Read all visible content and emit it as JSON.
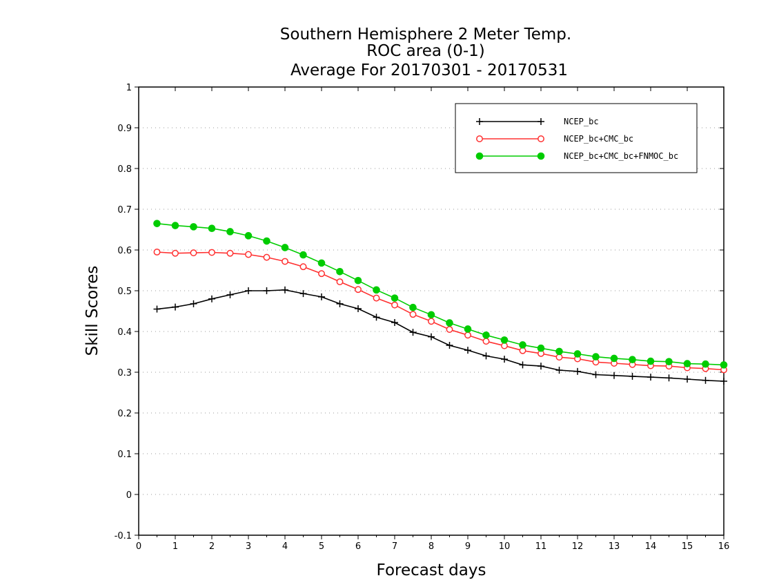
{
  "chart_data": {
    "type": "line",
    "title_lines": [
      "Southern Hemisphere 2 Meter Temp.",
      "ROC area (0-1)",
      "Average For 20170301 - 20170531"
    ],
    "xlabel": "Forecast days",
    "ylabel": "Skill Scores",
    "xlim": [
      0,
      16
    ],
    "ylim": [
      -0.1,
      1
    ],
    "x_ticks": [
      0,
      1,
      2,
      3,
      4,
      5,
      6,
      7,
      8,
      9,
      10,
      11,
      12,
      13,
      14,
      15,
      16
    ],
    "y_ticks": [
      -0.1,
      0,
      0.1,
      0.2,
      0.3,
      0.4,
      0.5,
      0.6,
      0.7,
      0.8,
      0.9,
      1
    ],
    "y_tick_labels": [
      "-0.1",
      "0",
      "0.1",
      "0.2",
      "0.3",
      "0.4",
      "0.5",
      "0.6",
      "0.7",
      "0.8",
      "0.9",
      "1"
    ],
    "grid": "horizontal dotted",
    "legend_position": "top-right",
    "x": [
      0.5,
      1,
      1.5,
      2,
      2.5,
      3,
      3.5,
      4,
      4.5,
      5,
      5.5,
      6,
      6.5,
      7,
      7.5,
      8,
      8.5,
      9,
      9.5,
      10,
      10.5,
      11,
      11.5,
      12,
      12.5,
      13,
      13.5,
      14,
      14.5,
      15,
      15.5,
      16
    ],
    "series": [
      {
        "name": "NCEP_bc",
        "color": "#000000",
        "marker": "plus",
        "values": [
          0.455,
          0.46,
          0.468,
          0.48,
          0.49,
          0.5,
          0.5,
          0.502,
          0.493,
          0.485,
          0.468,
          0.456,
          0.435,
          0.422,
          0.398,
          0.387,
          0.366,
          0.354,
          0.34,
          0.332,
          0.318,
          0.315,
          0.305,
          0.302,
          0.294,
          0.292,
          0.29,
          0.288,
          0.286,
          0.283,
          0.28,
          0.278
        ]
      },
      {
        "name": "NCEP_bc+CMC_bc",
        "color": "#ff3030",
        "marker": "open-circle",
        "values": [
          0.595,
          0.592,
          0.593,
          0.594,
          0.592,
          0.589,
          0.582,
          0.572,
          0.559,
          0.542,
          0.522,
          0.503,
          0.482,
          0.465,
          0.442,
          0.425,
          0.405,
          0.391,
          0.376,
          0.365,
          0.353,
          0.346,
          0.337,
          0.333,
          0.325,
          0.322,
          0.319,
          0.316,
          0.315,
          0.311,
          0.309,
          0.306
        ]
      },
      {
        "name": "NCEP_bc+CMC_bc+FNMOC_bc",
        "color": "#00cc00",
        "marker": "filled-circle",
        "values": [
          0.665,
          0.66,
          0.657,
          0.653,
          0.645,
          0.635,
          0.622,
          0.606,
          0.588,
          0.568,
          0.547,
          0.525,
          0.502,
          0.482,
          0.459,
          0.441,
          0.421,
          0.406,
          0.391,
          0.379,
          0.367,
          0.359,
          0.351,
          0.345,
          0.338,
          0.334,
          0.331,
          0.327,
          0.326,
          0.321,
          0.32,
          0.318
        ]
      }
    ]
  }
}
